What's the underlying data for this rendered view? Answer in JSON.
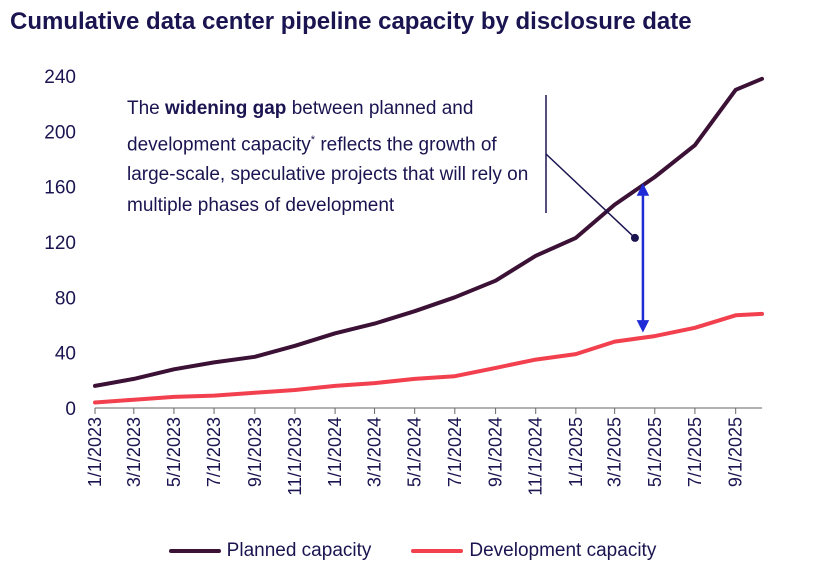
{
  "chart_data": {
    "type": "line",
    "title": "Cumulative data center pipeline capacity by disclosure date",
    "xlabel": "",
    "ylabel": "",
    "ylim": [
      0,
      240
    ],
    "yticks": [
      "0",
      "40",
      "80",
      "120",
      "160",
      "200",
      "240"
    ],
    "xticks": [
      "1/1/2023",
      "3/1/2023",
      "5/1/2023",
      "7/1/2023",
      "9/1/2023",
      "11/1/2023",
      "1/1/2024",
      "3/1/2024",
      "5/1/2024",
      "7/1/2024",
      "9/1/2024",
      "11/1/2024",
      "1/1/2025",
      "3/1/2025",
      "5/1/2025",
      "7/1/2025",
      "9/1/2025"
    ],
    "x_dates": [
      "2023-01-01",
      "2023-03-01",
      "2023-05-01",
      "2023-07-01",
      "2023-09-01",
      "2023-11-01",
      "2024-01-01",
      "2024-03-01",
      "2024-05-01",
      "2024-07-01",
      "2024-09-01",
      "2024-11-01",
      "2025-01-01",
      "2025-03-01",
      "2025-05-01",
      "2025-07-01",
      "2025-09-01",
      "2025-10-11"
    ],
    "grid": false,
    "legend_position": "bottom",
    "series": [
      {
        "name": "Planned capacity",
        "color": "#3b1136",
        "values": [
          16,
          21,
          28,
          33,
          37,
          45,
          54,
          61,
          70,
          80,
          92,
          110,
          123,
          147,
          167,
          190,
          230,
          238
        ]
      },
      {
        "name": "Development capacity",
        "color": "#f2404f",
        "values": [
          4,
          6,
          8,
          9,
          11,
          13,
          16,
          18,
          21,
          23,
          29,
          35,
          39,
          48,
          52,
          58,
          67,
          68
        ]
      }
    ],
    "annotation": {
      "text_before": "The ",
      "text_bold": "widening gap",
      "text_mid": " between planned and development capacity",
      "text_sup": "*",
      "text_after": " reflects the growth of large-scale, speculative projects that will rely on multiple phases of development",
      "arrow_date": "2025-04-13",
      "arrow_from": 52,
      "arrow_to": 165,
      "arrow_color": "#1f2bd6"
    }
  }
}
